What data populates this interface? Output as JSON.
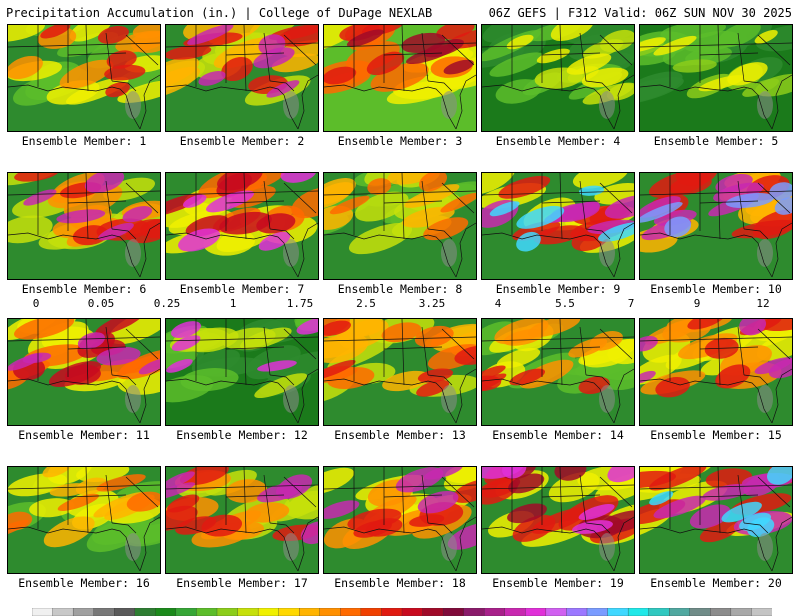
{
  "header": {
    "left": "Precipitation Accumulation (in.) | College of DuPage NEXLAB",
    "right": "06Z GEFS | F312 Valid: 06Z SUN NOV 30 2025"
  },
  "colorbar": {
    "tick_labels": [
      "0",
      "0.05",
      "0.25",
      "1",
      "1.75",
      "2.5",
      "3.25",
      "4",
      "5.5",
      "7",
      "9",
      "12"
    ],
    "colors": [
      "#f0f0f0",
      "#c8c8c8",
      "#a0a0a0",
      "#787878",
      "#5a5a5a",
      "#2e7d32",
      "#1b8a1b",
      "#36a636",
      "#5cbd2a",
      "#8ccd1a",
      "#c6e00a",
      "#f0f000",
      "#ffd800",
      "#ffb400",
      "#ff9000",
      "#ff6a00",
      "#f04000",
      "#e01a10",
      "#c80a1e",
      "#a00a28",
      "#800a3a",
      "#8a1a6a",
      "#a8208a",
      "#c828b0",
      "#e030d8",
      "#d060f0",
      "#9c78ff",
      "#7a9cff",
      "#40d8ff",
      "#20e8e8",
      "#30c8c0",
      "#50a8a0",
      "#708c88",
      "#8c8c8c",
      "#a8a8a8",
      "#c4c4c4"
    ]
  },
  "panels": [
    {
      "label": "Ensemble Member: 1",
      "palette": [
        "#2e8b2e",
        "#5cbd2a",
        "#f0f000",
        "#ff9000",
        "#e01a10"
      ]
    },
    {
      "label": "Ensemble Member: 2",
      "palette": [
        "#2e8b2e",
        "#c6e00a",
        "#ffb400",
        "#e01a10",
        "#c828b0"
      ]
    },
    {
      "label": "Ensemble Member: 3",
      "palette": [
        "#5cbd2a",
        "#f0f000",
        "#ff6a00",
        "#e01a10",
        "#a00a28"
      ]
    },
    {
      "label": "Ensemble Member: 4",
      "palette": [
        "#1b7a1b",
        "#2e8b2e",
        "#5cbd2a",
        "#c6e00a",
        "#f0f000"
      ]
    },
    {
      "label": "Ensemble Member: 5",
      "palette": [
        "#1b7a1b",
        "#2e8b2e",
        "#5cbd2a",
        "#8ccd1a",
        "#f0f000"
      ]
    },
    {
      "label": "Ensemble Member: 6",
      "palette": [
        "#2e8b2e",
        "#c6e00a",
        "#ff9000",
        "#e01a10",
        "#c828b0"
      ]
    },
    {
      "label": "Ensemble Member: 7",
      "palette": [
        "#2e8b2e",
        "#f0f000",
        "#ff6a00",
        "#c80a1e",
        "#e030d8"
      ]
    },
    {
      "label": "Ensemble Member: 8",
      "palette": [
        "#2e8b2e",
        "#5cbd2a",
        "#c6e00a",
        "#ffb400",
        "#ff6a00"
      ]
    },
    {
      "label": "Ensemble Member: 9",
      "palette": [
        "#2e8b2e",
        "#f0f000",
        "#e01a10",
        "#c828b0",
        "#40d8ff"
      ]
    },
    {
      "label": "Ensemble Member: 10",
      "palette": [
        "#2e8b2e",
        "#ffb400",
        "#e01a10",
        "#c828b0",
        "#7a9cff"
      ]
    },
    {
      "label": "Ensemble Member: 11",
      "palette": [
        "#2e8b2e",
        "#f0f000",
        "#ff6a00",
        "#c80a1e",
        "#c828b0"
      ]
    },
    {
      "label": "Ensemble Member: 12",
      "palette": [
        "#1b7a1b",
        "#2e8b2e",
        "#5cbd2a",
        "#c6e00a",
        "#e030d8"
      ]
    },
    {
      "label": "Ensemble Member: 13",
      "palette": [
        "#2e8b2e",
        "#c6e00a",
        "#ffb400",
        "#ff6a00",
        "#e01a10"
      ]
    },
    {
      "label": "Ensemble Member: 14",
      "palette": [
        "#2e8b2e",
        "#5cbd2a",
        "#f0f000",
        "#ff9000",
        "#e01a10"
      ]
    },
    {
      "label": "Ensemble Member: 15",
      "palette": [
        "#2e8b2e",
        "#f0f000",
        "#ff9000",
        "#e01a10",
        "#c828b0"
      ]
    },
    {
      "label": "Ensemble Member: 16",
      "palette": [
        "#2e8b2e",
        "#5cbd2a",
        "#f0f000",
        "#ffb400",
        "#ff6a00"
      ]
    },
    {
      "label": "Ensemble Member: 17",
      "palette": [
        "#2e8b2e",
        "#c6e00a",
        "#ff9000",
        "#e01a10",
        "#c828b0"
      ]
    },
    {
      "label": "Ensemble Member: 18",
      "palette": [
        "#2e8b2e",
        "#f0f000",
        "#ff9000",
        "#e01a10",
        "#c828b0"
      ]
    },
    {
      "label": "Ensemble Member: 19",
      "palette": [
        "#2e8b2e",
        "#f0f000",
        "#e01a10",
        "#a00a28",
        "#e030d8"
      ]
    },
    {
      "label": "Ensemble Member: 20",
      "palette": [
        "#2e8b2e",
        "#f0f000",
        "#e01a10",
        "#c828b0",
        "#40d8ff"
      ]
    }
  ]
}
